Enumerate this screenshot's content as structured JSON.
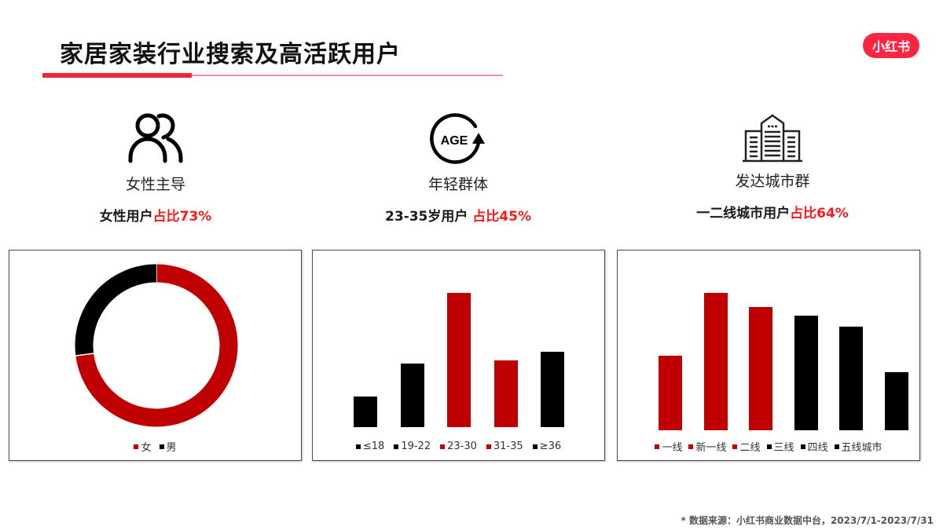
{
  "header": {
    "title": "家居家装行业搜索及高活跃用户",
    "logo_text": "小红书",
    "accent_color": "#f2243f",
    "logo_color": "#ff2442"
  },
  "stats": [
    {
      "icon": "people-icon",
      "label": "女性主导",
      "desc_prefix": "女性用户",
      "desc_highlight": "占比73%"
    },
    {
      "icon": "age-icon",
      "label": "年轻群体",
      "desc_prefix": "23-35岁用户 ",
      "desc_highlight": "占比45%"
    },
    {
      "icon": "buildings-icon",
      "label": "发达城市群",
      "desc_prefix": "一二线城市用户",
      "desc_highlight": "占比64%"
    }
  ],
  "colors": {
    "red": "#c00000",
    "black": "#000000",
    "highlight": "#ff1a1a"
  },
  "chart_data": [
    {
      "type": "pie",
      "variant": "donut",
      "title": "女性主导",
      "categories": [
        "女",
        "男"
      ],
      "values": [
        73,
        27
      ],
      "colors": [
        "#c00000",
        "#000000"
      ],
      "legend_position": "bottom"
    },
    {
      "type": "bar",
      "title": "年轻群体",
      "categories": [
        "≤18",
        "19-22",
        "23-30",
        "31-35",
        "≥36"
      ],
      "values": [
        39,
        81,
        171,
        85,
        96
      ],
      "value_unit": "relative height (px), no axis shown",
      "colors": [
        "#000000",
        "#000000",
        "#c00000",
        "#c00000",
        "#000000"
      ],
      "grid": false,
      "legend_position": "bottom"
    },
    {
      "type": "bar",
      "title": "发达城市群",
      "categories": [
        "一线",
        "新一线",
        "二线",
        "三线",
        "四线",
        "五线城市"
      ],
      "values": [
        95,
        175,
        157,
        146,
        132,
        74
      ],
      "value_unit": "relative height (px), no axis shown",
      "colors": [
        "#c00000",
        "#c00000",
        "#c00000",
        "#000000",
        "#000000",
        "#000000"
      ],
      "grid": false,
      "legend_position": "bottom"
    }
  ],
  "footer": {
    "source": "* 数据来源：小红书商业数据中台，2023/7/1-2023/7/31"
  }
}
